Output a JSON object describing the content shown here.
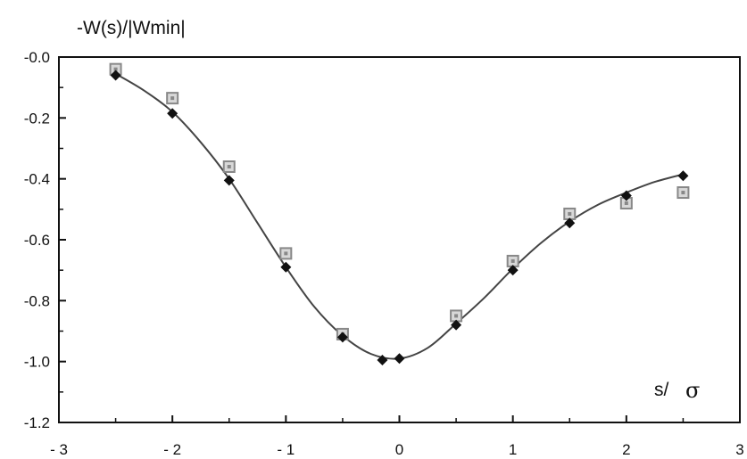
{
  "chart_data": {
    "type": "scatter",
    "title": "",
    "ylabel": "-W(s)/|Wmin|",
    "xlabel_s": "s/",
    "xlabel_sigma": "σ",
    "xlim": [
      -3,
      3
    ],
    "ylim": [
      -1.2,
      0.0
    ],
    "x_ticks": [
      -3,
      -2,
      -1,
      0,
      1,
      2,
      3
    ],
    "x_tick_labels": [
      "- 3",
      "- 2",
      "- 1",
      "0",
      "1",
      "2",
      "3"
    ],
    "y_ticks": [
      0.0,
      -0.2,
      -0.4,
      -0.6,
      -0.8,
      -1.0,
      -1.2
    ],
    "y_tick_labels": [
      "-0.0",
      "-0.2",
      "-0.4",
      "-0.6",
      "-0.8",
      "-1.0",
      "-1.2"
    ],
    "grid": false,
    "series": [
      {
        "marker": "filled-diamond",
        "color": "#111111",
        "points": [
          [
            -2.5,
            -0.06
          ],
          [
            -2.0,
            -0.185
          ],
          [
            -1.5,
            -0.405
          ],
          [
            -1.0,
            -0.69
          ],
          [
            -0.5,
            -0.92
          ],
          [
            -0.15,
            -0.995
          ],
          [
            0.0,
            -0.99
          ],
          [
            0.5,
            -0.88
          ],
          [
            1.0,
            -0.7
          ],
          [
            1.5,
            -0.545
          ],
          [
            2.0,
            -0.455
          ],
          [
            2.5,
            -0.39
          ]
        ]
      },
      {
        "marker": "open-square",
        "color": "#888888",
        "points": [
          [
            -2.5,
            -0.04
          ],
          [
            -2.0,
            -0.135
          ],
          [
            -1.5,
            -0.36
          ],
          [
            -1.0,
            -0.645
          ],
          [
            -0.5,
            -0.91
          ],
          [
            0.5,
            -0.85
          ],
          [
            1.0,
            -0.67
          ],
          [
            1.5,
            -0.515
          ],
          [
            2.0,
            -0.48
          ],
          [
            2.5,
            -0.445
          ]
        ]
      }
    ],
    "fit_curve": {
      "color": "#444444",
      "points": [
        [
          -2.5,
          -0.055
        ],
        [
          -2.25,
          -0.11
        ],
        [
          -2.0,
          -0.18
        ],
        [
          -1.75,
          -0.28
        ],
        [
          -1.5,
          -0.4
        ],
        [
          -1.25,
          -0.545
        ],
        [
          -1.0,
          -0.69
        ],
        [
          -0.75,
          -0.82
        ],
        [
          -0.5,
          -0.915
        ],
        [
          -0.25,
          -0.975
        ],
        [
          0.0,
          -0.99
        ],
        [
          0.25,
          -0.955
        ],
        [
          0.5,
          -0.875
        ],
        [
          0.75,
          -0.79
        ],
        [
          1.0,
          -0.695
        ],
        [
          1.25,
          -0.61
        ],
        [
          1.5,
          -0.54
        ],
        [
          1.75,
          -0.485
        ],
        [
          2.0,
          -0.445
        ],
        [
          2.25,
          -0.41
        ],
        [
          2.5,
          -0.385
        ]
      ]
    }
  }
}
